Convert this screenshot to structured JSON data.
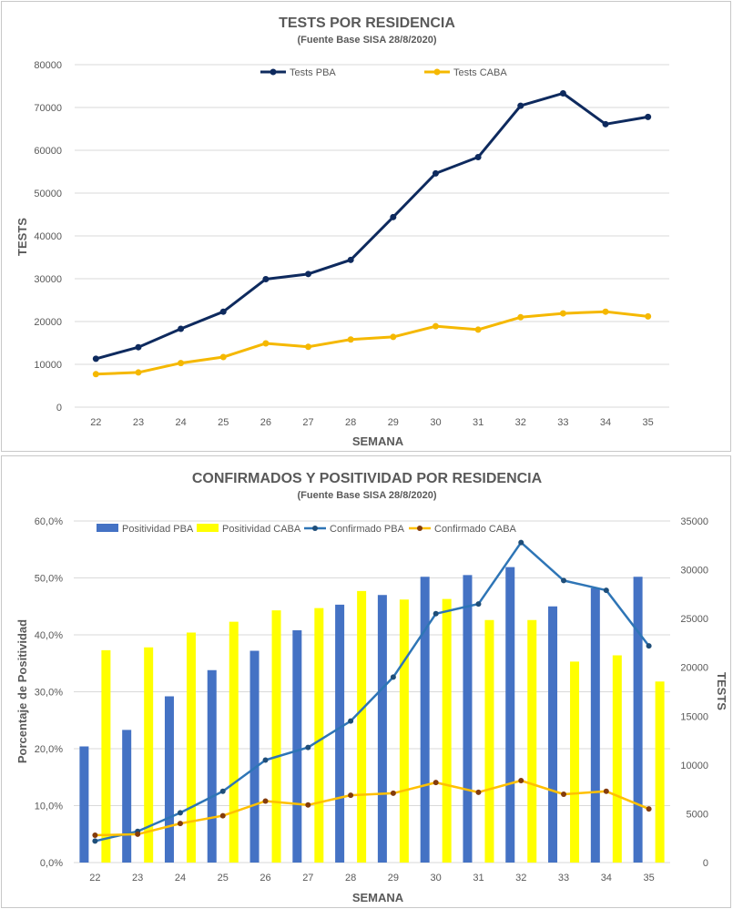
{
  "chart_data": [
    {
      "type": "line",
      "title": "TESTS POR RESIDENCIA",
      "subtitle": "(Fuente Base SISA 28/8/2020)",
      "xlabel": "SEMANA",
      "ylabel": "TESTS",
      "x": [
        "22",
        "23",
        "24",
        "25",
        "26",
        "27",
        "28",
        "29",
        "30",
        "31",
        "32",
        "33",
        "34",
        "35"
      ],
      "ylim": [
        0,
        80000
      ],
      "yticks": [
        "0",
        "10000",
        "20000",
        "30000",
        "40000",
        "50000",
        "60000",
        "70000",
        "80000"
      ],
      "grid": true,
      "legend_position": "top",
      "series": [
        {
          "name": "Tests PBA",
          "color": "#0e2a5e",
          "values": [
            11300,
            14000,
            18300,
            22300,
            29900,
            31100,
            34400,
            44400,
            54600,
            58400,
            70400,
            73300,
            66100,
            67800
          ]
        },
        {
          "name": "Tests CABA",
          "color": "#f5b800",
          "values": [
            7700,
            8100,
            10300,
            11700,
            14900,
            14100,
            15800,
            16400,
            18900,
            18100,
            21000,
            21900,
            22300,
            21200
          ]
        }
      ]
    },
    {
      "type": "bar",
      "title": "CONFIRMADOS Y POSITIVIDAD POR RESIDENCIA",
      "subtitle": "(Fuente Base SISA 28/8/2020)",
      "xlabel": "SEMANA",
      "ylabel": "Porcentaje de Positividad",
      "y2label": "TESTS",
      "categories": [
        "22",
        "23",
        "24",
        "25",
        "26",
        "27",
        "28",
        "29",
        "30",
        "31",
        "32",
        "33",
        "34",
        "35"
      ],
      "ylim": [
        0,
        60
      ],
      "yticks": [
        "0,0%",
        "10,0%",
        "20,0%",
        "30,0%",
        "40,0%",
        "50,0%",
        "60,0%"
      ],
      "y2lim": [
        0,
        35000
      ],
      "y2ticks": [
        "0",
        "5000",
        "10000",
        "15000",
        "20000",
        "25000",
        "30000",
        "35000"
      ],
      "grid": true,
      "legend_position": "top",
      "series": [
        {
          "name": "Positividad PBA",
          "kind": "bar",
          "axis": "left",
          "color": "#4472c4",
          "values": [
            20.4,
            23.3,
            29.2,
            33.8,
            37.2,
            40.8,
            45.3,
            47.0,
            50.2,
            50.5,
            51.9,
            45.0,
            48.2,
            50.2
          ]
        },
        {
          "name": "Positividad CABA",
          "kind": "bar",
          "axis": "left",
          "color": "#ffff00",
          "values": [
            37.3,
            37.8,
            40.4,
            42.3,
            44.3,
            44.7,
            47.7,
            46.2,
            46.3,
            42.6,
            42.6,
            35.3,
            36.4,
            31.8
          ]
        },
        {
          "name": "Confirmado PBA",
          "kind": "line",
          "axis": "right",
          "color": "#2e75b6",
          "marker": "#1f4e79",
          "values": [
            2200,
            3200,
            5100,
            7300,
            10500,
            11800,
            14500,
            19000,
            25500,
            26500,
            32800,
            28900,
            27900,
            22200
          ]
        },
        {
          "name": "Confirmado CABA",
          "kind": "line",
          "axis": "right",
          "color": "#ffc000",
          "marker": "#843c0c",
          "values": [
            2800,
            2900,
            4000,
            4800,
            6300,
            5900,
            6900,
            7100,
            8200,
            7200,
            8400,
            7000,
            7300,
            5500
          ]
        }
      ]
    }
  ]
}
